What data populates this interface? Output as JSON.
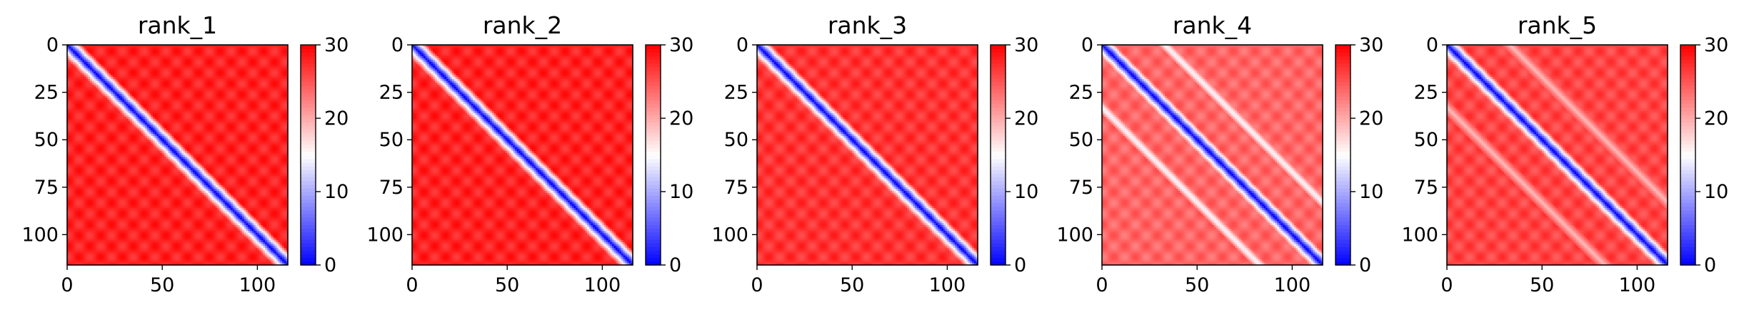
{
  "chart_data": [
    {
      "type": "heatmap",
      "title": "rank_1",
      "xlim": [
        0,
        116
      ],
      "ylim": [
        116,
        0
      ],
      "xticks": [
        0,
        50,
        100
      ],
      "yticks": [
        0,
        25,
        50,
        75,
        100
      ],
      "colorbar": {
        "min": 0,
        "max": 30,
        "ticks": [
          0,
          10,
          20,
          30
        ],
        "colormap": "bwr"
      },
      "features": {
        "diagonal_band_width": 10,
        "offdiag_bands": [],
        "off_band_level": 28
      }
    },
    {
      "type": "heatmap",
      "title": "rank_2",
      "xlim": [
        0,
        116
      ],
      "ylim": [
        116,
        0
      ],
      "xticks": [
        0,
        50,
        100
      ],
      "yticks": [
        0,
        25,
        50,
        75,
        100
      ],
      "colorbar": {
        "min": 0,
        "max": 30,
        "ticks": [
          0,
          10,
          20,
          30
        ],
        "colormap": "bwr"
      },
      "features": {
        "diagonal_band_width": 10,
        "offdiag_bands": [],
        "off_band_level": 28
      }
    },
    {
      "type": "heatmap",
      "title": "rank_3",
      "xlim": [
        0,
        116
      ],
      "ylim": [
        116,
        0
      ],
      "xticks": [
        0,
        50,
        100
      ],
      "yticks": [
        0,
        25,
        50,
        75,
        100
      ],
      "colorbar": {
        "min": 0,
        "max": 30,
        "ticks": [
          0,
          10,
          20,
          30
        ],
        "colormap": "bwr"
      },
      "features": {
        "diagonal_band_width": 9,
        "offdiag_bands": [],
        "off_band_level": 27
      }
    },
    {
      "type": "heatmap",
      "title": "rank_4",
      "xlim": [
        0,
        116
      ],
      "ylim": [
        116,
        0
      ],
      "xticks": [
        0,
        50,
        100
      ],
      "yticks": [
        0,
        25,
        50,
        75,
        100
      ],
      "colorbar": {
        "min": 0,
        "max": 30,
        "ticks": [
          0,
          10,
          20,
          30
        ],
        "colormap": "bwr"
      },
      "features": {
        "diagonal_band_width": 9,
        "offdiag_bands": [
          {
            "offset": 33,
            "level": 14,
            "width": 4
          }
        ],
        "off_band_level": 24
      }
    },
    {
      "type": "heatmap",
      "title": "rank_5",
      "xlim": [
        0,
        116
      ],
      "ylim": [
        116,
        0
      ],
      "xticks": [
        0,
        50,
        100
      ],
      "yticks": [
        0,
        25,
        50,
        75,
        100
      ],
      "colorbar": {
        "min": 0,
        "max": 30,
        "ticks": [
          0,
          10,
          20,
          30
        ],
        "colormap": "bwr"
      },
      "features": {
        "diagonal_band_width": 9,
        "offdiag_bands": [
          {
            "offset": 33,
            "level": 19,
            "width": 5
          }
        ],
        "off_band_level": 26
      }
    }
  ]
}
